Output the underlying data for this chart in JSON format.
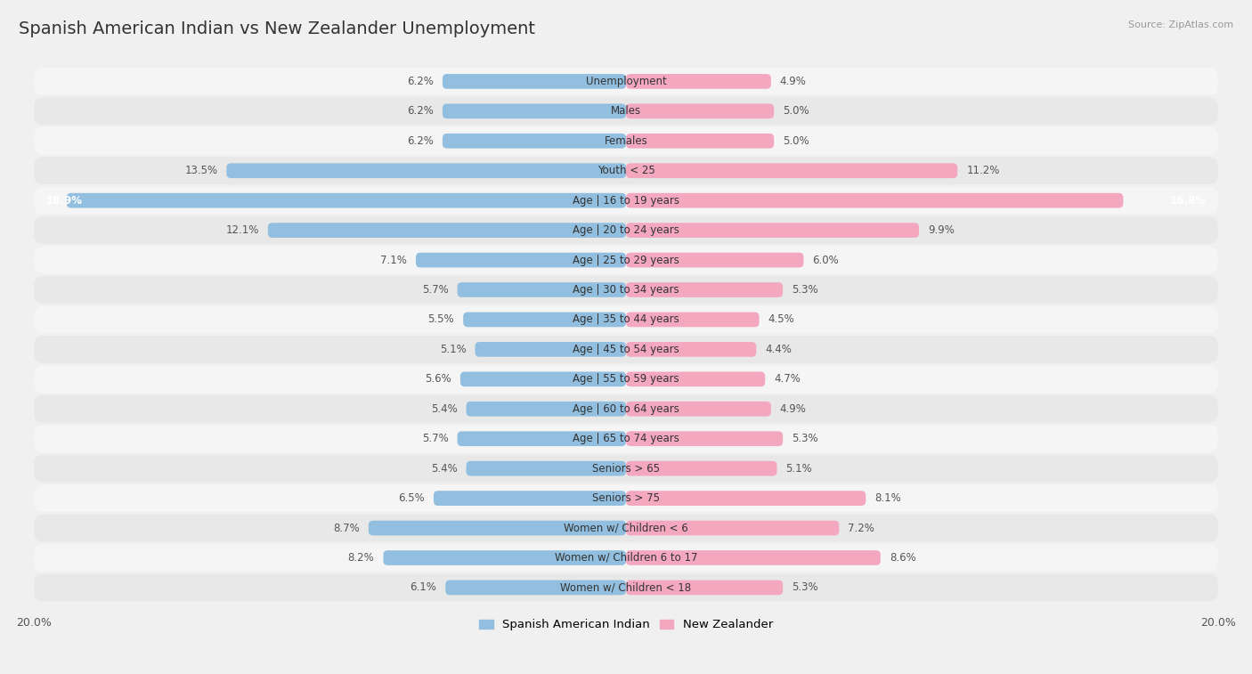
{
  "title": "Spanish American Indian vs New Zealander Unemployment",
  "source": "Source: ZipAtlas.com",
  "categories": [
    "Unemployment",
    "Males",
    "Females",
    "Youth < 25",
    "Age | 16 to 19 years",
    "Age | 20 to 24 years",
    "Age | 25 to 29 years",
    "Age | 30 to 34 years",
    "Age | 35 to 44 years",
    "Age | 45 to 54 years",
    "Age | 55 to 59 years",
    "Age | 60 to 64 years",
    "Age | 65 to 74 years",
    "Seniors > 65",
    "Seniors > 75",
    "Women w/ Children < 6",
    "Women w/ Children 6 to 17",
    "Women w/ Children < 18"
  ],
  "left_values": [
    6.2,
    6.2,
    6.2,
    13.5,
    18.9,
    12.1,
    7.1,
    5.7,
    5.5,
    5.1,
    5.6,
    5.4,
    5.7,
    5.4,
    6.5,
    8.7,
    8.2,
    6.1
  ],
  "right_values": [
    4.9,
    5.0,
    5.0,
    11.2,
    16.8,
    9.9,
    6.0,
    5.3,
    4.5,
    4.4,
    4.7,
    4.9,
    5.3,
    5.1,
    8.1,
    7.2,
    8.6,
    5.3
  ],
  "left_color": "#92bfdf",
  "right_color": "#f4a8c0",
  "left_label": "Spanish American Indian",
  "right_label": "New Zealander",
  "max_val": 20.0,
  "bg_color": "#f0f0f0",
  "row_colors": [
    "#f5f5f5",
    "#e8e8e8"
  ],
  "title_fontsize": 14,
  "source_fontsize": 8,
  "cat_fontsize": 8.5,
  "val_fontsize": 8.5
}
